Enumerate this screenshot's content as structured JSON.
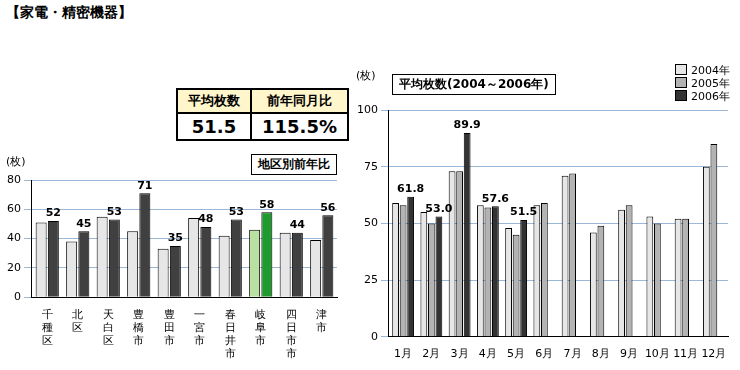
{
  "header": {
    "title": "【家電・精密機器】"
  },
  "table": {
    "columns": [
      "平均枚数",
      "前年同月比"
    ],
    "rows": [
      [
        "51.5",
        "115.5%"
      ]
    ]
  },
  "chart_data": [
    {
      "type": "bar",
      "title": "地区別前年比",
      "y_label": "(枚)",
      "categories": [
        "千種区",
        "北区",
        "天白区",
        "豊橋市",
        "豊田市",
        "一宮市",
        "春日井市",
        "岐阜市",
        "四日市市",
        "津市"
      ],
      "series": [
        {
          "values": [
            51,
            38,
            55,
            45,
            33,
            54,
            42,
            46,
            44,
            39
          ],
          "colors": [
            "#e6e6e6",
            "#e6e6e6",
            "#e6e6e6",
            "#e6e6e6",
            "#e6e6e6",
            "#e6e6e6",
            "#e6e6e6",
            "#b8e0a0",
            "#e6e6e6",
            "#e6e6e6"
          ]
        },
        {
          "values": [
            52,
            45,
            53,
            71,
            35,
            48,
            53,
            58,
            44,
            56
          ],
          "colors": [
            "#404040",
            "#404040",
            "#404040",
            "#404040",
            "#404040",
            "#404040",
            "#404040",
            "#1f9a2e",
            "#404040",
            "#404040"
          ],
          "data_labels": true
        }
      ],
      "ylim": [
        0,
        80
      ],
      "yticks": [
        0,
        20,
        40,
        60,
        80
      ],
      "grid": true
    },
    {
      "type": "bar",
      "title": "平均枚数(2004～2006年)",
      "y_label": "(枚)",
      "categories": [
        "1月",
        "2月",
        "3月",
        "4月",
        "5月",
        "6月",
        "7月",
        "8月",
        "9月",
        "10月",
        "11月",
        "12月"
      ],
      "series": [
        {
          "name": "2004年",
          "color": "#e6e6e6",
          "values": [
            59,
            55,
            73,
            58,
            48,
            58,
            71,
            46,
            56,
            53,
            52,
            75
          ]
        },
        {
          "name": "2005年",
          "color": "#b3b3b3",
          "values": [
            58,
            50,
            73,
            57,
            45,
            59,
            72,
            49,
            58,
            50,
            52,
            85
          ]
        },
        {
          "name": "2006年",
          "color": "#333333",
          "values": [
            61.8,
            53.0,
            89.9,
            57.6,
            51.5,
            null,
            null,
            null,
            null,
            null,
            null,
            null
          ],
          "value_labels": [
            "61.8",
            "53.0",
            "89.9",
            "57.6",
            "51.5",
            null,
            null,
            null,
            null,
            null,
            null,
            null
          ],
          "data_labels": true
        }
      ],
      "legend": "top-right",
      "ylim": [
        0,
        100
      ],
      "yticks": [
        0,
        25,
        50,
        75,
        100
      ],
      "grid": true
    }
  ]
}
